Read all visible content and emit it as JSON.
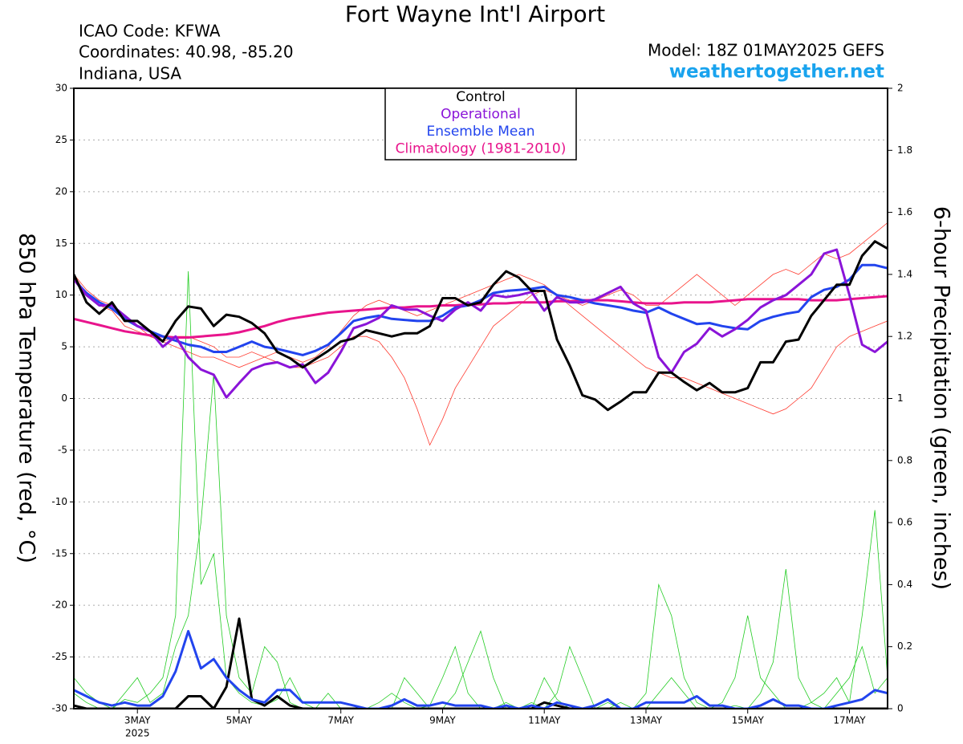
{
  "chart_data": {
    "type": "line",
    "title": "Fort Wayne Int'l Airport",
    "info_left": [
      "ICAO Code: KFWA",
      "Coordinates: 40.98, -85.20",
      "Indiana, USA"
    ],
    "model": "Model: 18Z 01MAY2025 GEFS",
    "site": "weathertogether.net",
    "ylabel": "850 hPa Temperature (red, °C)",
    "y2label": "6-hour Precipitation (green, inches)",
    "x": [
      1.75,
      2.0,
      2.25,
      2.5,
      2.75,
      3.0,
      3.25,
      3.5,
      3.75,
      4.0,
      4.25,
      4.5,
      4.75,
      5.0,
      5.25,
      5.5,
      5.75,
      6.0,
      6.25,
      6.5,
      6.75,
      7.0,
      7.25,
      7.5,
      7.75,
      8.0,
      8.25,
      8.5,
      8.75,
      9.0,
      9.25,
      9.5,
      9.75,
      10.0,
      10.25,
      10.5,
      10.75,
      11.0,
      11.25,
      11.5,
      11.75,
      12.0,
      12.25,
      12.5,
      12.75,
      13.0,
      13.25,
      13.5,
      13.75,
      14.0,
      14.25,
      14.5,
      14.75,
      15.0,
      15.25,
      15.5,
      15.75,
      16.0,
      16.25,
      16.5,
      16.75,
      17.0,
      17.25,
      17.5,
      17.75
    ],
    "xlim": [
      1.75,
      17.75
    ],
    "xticks": [
      {
        "value": 3,
        "label": "3MAY"
      },
      {
        "value": 5,
        "label": "5MAY"
      },
      {
        "value": 7,
        "label": "7MAY"
      },
      {
        "value": 9,
        "label": "9MAY"
      },
      {
        "value": 11,
        "label": "11MAY"
      },
      {
        "value": 13,
        "label": "13MAY"
      },
      {
        "value": 15,
        "label": "15MAY"
      },
      {
        "value": 17,
        "label": "17MAY"
      }
    ],
    "x_sublabel": "2025",
    "ylim": [
      -30,
      30
    ],
    "yticks": [
      30,
      25,
      20,
      15,
      10,
      5,
      0,
      -5,
      -10,
      -15,
      -20,
      -25,
      -30
    ],
    "y2lim": [
      0,
      2
    ],
    "y2ticks": [
      2,
      1.8,
      1.6,
      1.4,
      1.2,
      1,
      0.8,
      0.6,
      0.4,
      0.2,
      0
    ],
    "grid": true,
    "legend": "top-center",
    "ensemble": {
      "temperature": {
        "color": "#ff3b30",
        "series": [
          [
            12,
            10,
            9,
            8.5,
            7,
            6.5,
            6,
            5.5,
            6,
            6,
            5.5,
            5,
            4,
            4,
            4.5,
            4,
            3.5,
            3,
            3,
            3.5,
            4,
            5,
            6,
            6,
            5.5,
            4,
            2,
            -1,
            -4.5,
            -2,
            1,
            3,
            5,
            7,
            8,
            9,
            10,
            10.5,
            10,
            9.5,
            9,
            9.5,
            10,
            10.5,
            10,
            9,
            9,
            10,
            11,
            12,
            11,
            10,
            9,
            10,
            11,
            12,
            12.5,
            12,
            13,
            14,
            13.5,
            14,
            15,
            16,
            17
          ],
          [
            12,
            10.5,
            9.5,
            9,
            8,
            7,
            6,
            5.5,
            5,
            4.5,
            4,
            4,
            3.5,
            3,
            3.5,
            4,
            4.5,
            4,
            3.5,
            4,
            5,
            6.5,
            8,
            9,
            9.5,
            9,
            8.5,
            8,
            8.5,
            9,
            9.5,
            10,
            10.5,
            11,
            11.5,
            12,
            11.5,
            11,
            10,
            9,
            8,
            7,
            6,
            5,
            4,
            3,
            2.5,
            2,
            2,
            1.5,
            1,
            0.5,
            0,
            -0.5,
            -1,
            -1.5,
            -1,
            0,
            1,
            3,
            5,
            6,
            6.5,
            7,
            7.5
          ]
        ]
      },
      "precipitation": {
        "color": "#22cc22",
        "series": [
          [
            0.05,
            0.02,
            0,
            0,
            0.03,
            0.02,
            0.05,
            0.1,
            0.3,
            1.41,
            0.4,
            0.5,
            0.1,
            0.05,
            0.02,
            0.01,
            0.03,
            0.1,
            0.02,
            0,
            0,
            0,
            0,
            0,
            0.02,
            0.05,
            0.02,
            0,
            0.01,
            0.1,
            0.2,
            0.05,
            0,
            0,
            0.02,
            0,
            0,
            0.1,
            0.03,
            0,
            0,
            0,
            0.02,
            0,
            0,
            0.05,
            0.4,
            0.3,
            0.1,
            0.02,
            0,
            0,
            0.01,
            0,
            0.05,
            0.15,
            0.45,
            0.1,
            0.02,
            0,
            0.05,
            0.1,
            0.2,
            0.05,
            0.1
          ],
          [
            0.1,
            0.05,
            0.02,
            0,
            0.05,
            0.1,
            0.02,
            0.05,
            0.2,
            0.3,
            0.6,
            1.08,
            0.3,
            0.1,
            0.05,
            0.2,
            0.15,
            0.02,
            0,
            0,
            0.05,
            0,
            0,
            0,
            0,
            0,
            0.1,
            0.05,
            0,
            0,
            0.05,
            0.15,
            0.25,
            0.1,
            0,
            0,
            0.02,
            0,
            0.05,
            0.2,
            0.1,
            0,
            0,
            0.02,
            0,
            0,
            0.05,
            0.1,
            0.05,
            0,
            0,
            0.02,
            0.1,
            0.3,
            0.1,
            0.05,
            0,
            0,
            0.02,
            0.05,
            0.1,
            0.02,
            0.3,
            0.64,
            0.1
          ]
        ]
      }
    },
    "series": [
      {
        "name": "Control",
        "color": "#000000",
        "values": [
          12,
          9.3,
          8.2,
          9.3,
          7.5,
          7.5,
          6.5,
          5.5,
          7.5,
          8.9,
          8.7,
          7.0,
          8.1,
          7.9,
          7.3,
          6.3,
          4.5,
          3.9,
          3.0,
          3.8,
          4.6,
          5.5,
          5.8,
          6.6,
          6.3,
          6.0,
          6.3,
          6.3,
          7.0,
          9.7,
          9.7,
          9.0,
          9.3,
          11.0,
          12.3,
          11.7,
          10.4,
          10.4,
          5.7,
          3.2,
          0.3,
          -0.1,
          -1.1,
          -0.3,
          0.6,
          0.6,
          2.5,
          2.5,
          1.6,
          0.8,
          1.5,
          0.6,
          0.6,
          1.0,
          3.5,
          3.5,
          5.5,
          5.7,
          8.0,
          9.5,
          11.0,
          11.0,
          13.8,
          15.2,
          14.5
        ]
      },
      {
        "name": "Operational",
        "color": "#8a14d8",
        "values": [
          11.5,
          10.0,
          9.0,
          9.0,
          8.0,
          7.0,
          6.5,
          5.0,
          6.0,
          4.0,
          2.8,
          2.3,
          0.1,
          1.5,
          2.8,
          3.3,
          3.5,
          3.0,
          3.3,
          1.5,
          2.5,
          4.5,
          6.8,
          7.2,
          7.8,
          9.0,
          8.6,
          8.6,
          8.0,
          7.5,
          8.6,
          9.3,
          8.5,
          10.0,
          9.8,
          10.0,
          10.3,
          8.5,
          9.8,
          9.3,
          9.3,
          9.6,
          10.2,
          10.8,
          9.2,
          8.5,
          4.0,
          2.5,
          4.5,
          5.3,
          6.8,
          6.0,
          6.7,
          7.6,
          8.8,
          9.5,
          10.0,
          11.0,
          12.0,
          14.0,
          14.4,
          10.0,
          5.2,
          4.5,
          5.5
        ]
      },
      {
        "name": "Ensemble Mean",
        "color": "#2244ee",
        "values": [
          11.5,
          10.2,
          9.3,
          8.7,
          7.7,
          7.0,
          6.5,
          6.0,
          5.6,
          5.2,
          5.0,
          4.5,
          4.5,
          5.0,
          5.5,
          5.0,
          4.8,
          4.5,
          4.2,
          4.6,
          5.2,
          6.3,
          7.5,
          7.8,
          8.0,
          7.7,
          7.6,
          7.5,
          7.5,
          8.0,
          8.8,
          9.0,
          9.5,
          10.2,
          10.4,
          10.5,
          10.6,
          10.8,
          10.0,
          9.8,
          9.5,
          9.2,
          9.0,
          8.8,
          8.5,
          8.3,
          8.8,
          8.2,
          7.7,
          7.2,
          7.3,
          7.0,
          6.8,
          6.7,
          7.5,
          7.9,
          8.2,
          8.4,
          9.8,
          10.5,
          10.8,
          11.5,
          12.9,
          12.9,
          12.6
        ]
      },
      {
        "name": "Climatology (1981-2010)",
        "color": "#e8148c",
        "values": [
          7.7,
          7.4,
          7.1,
          6.8,
          6.5,
          6.3,
          6.1,
          6.0,
          5.9,
          5.9,
          6.0,
          6.1,
          6.2,
          6.4,
          6.7,
          7.0,
          7.4,
          7.7,
          7.9,
          8.1,
          8.3,
          8.4,
          8.5,
          8.6,
          8.7,
          8.8,
          8.8,
          8.9,
          8.9,
          9.0,
          9.0,
          9.1,
          9.1,
          9.2,
          9.2,
          9.3,
          9.3,
          9.3,
          9.4,
          9.4,
          9.5,
          9.5,
          9.5,
          9.4,
          9.3,
          9.2,
          9.2,
          9.2,
          9.3,
          9.3,
          9.3,
          9.4,
          9.5,
          9.6,
          9.6,
          9.6,
          9.6,
          9.6,
          9.5,
          9.5,
          9.5,
          9.6,
          9.7,
          9.8,
          9.9
        ]
      },
      {
        "axis": "y2",
        "color": "#000000",
        "values": [
          0.01,
          0,
          0,
          0,
          0,
          0,
          0,
          0,
          0,
          0.04,
          0.04,
          0,
          0.07,
          0.29,
          0.03,
          0.01,
          0.04,
          0.01,
          0,
          0,
          0,
          0,
          0,
          0,
          0,
          0,
          0,
          0,
          0,
          0,
          0,
          0,
          0,
          0,
          0,
          0,
          0,
          0.02,
          0.01,
          0,
          0,
          0,
          0,
          0,
          0,
          0,
          0,
          0,
          0,
          0,
          0,
          0,
          0,
          0,
          0,
          0,
          0,
          0,
          0,
          0,
          0,
          0,
          0,
          0,
          0
        ]
      },
      {
        "axis": "y2",
        "color": "#2244ee",
        "values": [
          0.06,
          0.04,
          0.02,
          0.01,
          0.02,
          0.01,
          0.01,
          0.04,
          0.12,
          0.25,
          0.13,
          0.16,
          0.1,
          0.06,
          0.03,
          0.02,
          0.06,
          0.06,
          0.02,
          0.02,
          0.02,
          0.02,
          0.01,
          0,
          0,
          0.01,
          0.03,
          0.01,
          0.01,
          0.02,
          0.01,
          0.01,
          0.01,
          0,
          0.01,
          0,
          0.01,
          0,
          0.02,
          0.01,
          0,
          0.01,
          0.03,
          0,
          0,
          0.02,
          0.02,
          0.02,
          0.02,
          0.04,
          0.01,
          0.01,
          0,
          0,
          0.01,
          0.03,
          0.01,
          0.01,
          0,
          0,
          0.01,
          0.02,
          0.03,
          0.06,
          0.05
        ]
      }
    ]
  }
}
